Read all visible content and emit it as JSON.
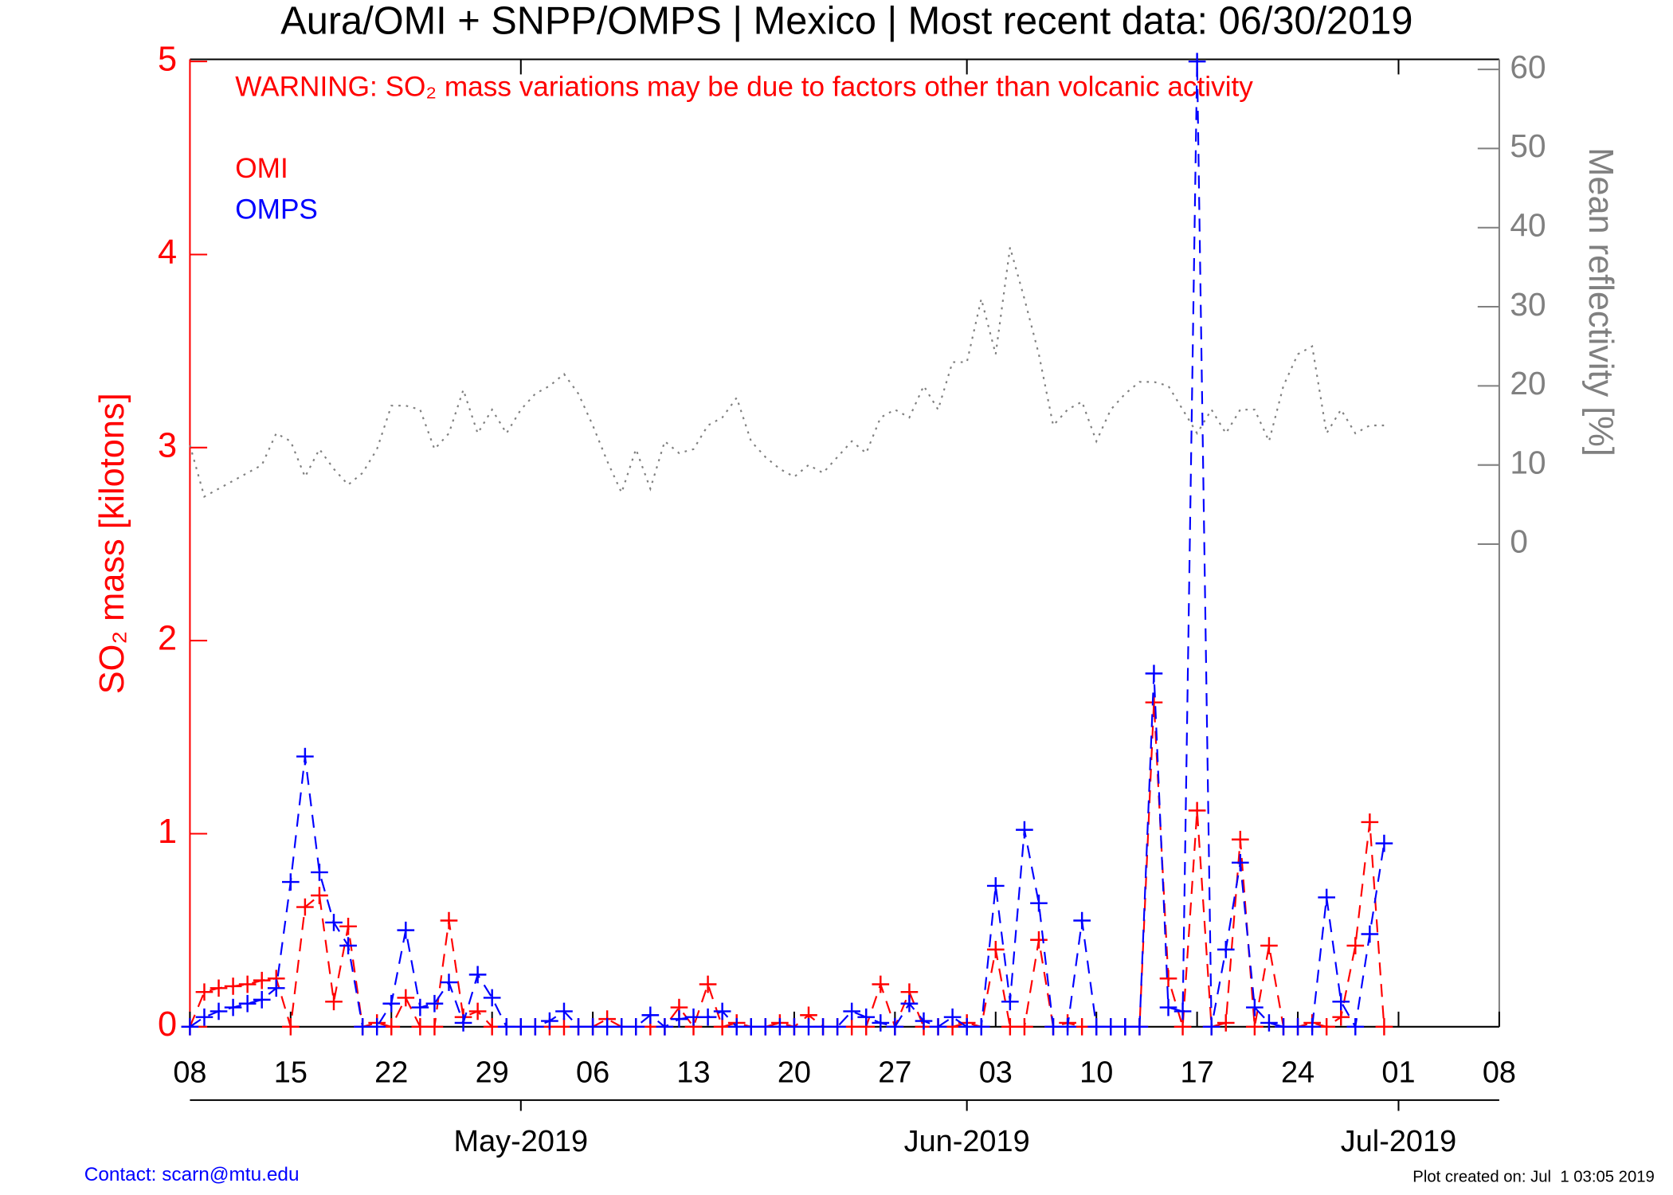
{
  "chart_data": {
    "type": "line",
    "title": "Aura/OMI + SNPP/OMPS | Mexico | Most recent data: 06/30/2019",
    "annotation": "WARNING: SO₂ mass variations may be due to factors other than volcanic activity",
    "ylabel": "SO₂ mass [kilotons]",
    "y2label": "Mean reflectivity [%]",
    "contact": "Contact: scarn@mtu.edu",
    "created": "Plot created on: Jul  1 03:05 2019",
    "x": [
      "2019-04-08",
      "2019-04-09",
      "2019-04-10",
      "2019-04-11",
      "2019-04-12",
      "2019-04-13",
      "2019-04-14",
      "2019-04-15",
      "2019-04-16",
      "2019-04-17",
      "2019-04-18",
      "2019-04-19",
      "2019-04-20",
      "2019-04-21",
      "2019-04-22",
      "2019-04-23",
      "2019-04-24",
      "2019-04-25",
      "2019-04-26",
      "2019-04-27",
      "2019-04-28",
      "2019-04-29",
      "2019-04-30",
      "2019-05-01",
      "2019-05-02",
      "2019-05-03",
      "2019-05-04",
      "2019-05-05",
      "2019-05-06",
      "2019-05-07",
      "2019-05-08",
      "2019-05-09",
      "2019-05-10",
      "2019-05-11",
      "2019-05-12",
      "2019-05-13",
      "2019-05-14",
      "2019-05-15",
      "2019-05-16",
      "2019-05-17",
      "2019-05-18",
      "2019-05-19",
      "2019-05-20",
      "2019-05-21",
      "2019-05-22",
      "2019-05-23",
      "2019-05-24",
      "2019-05-25",
      "2019-05-26",
      "2019-05-27",
      "2019-05-28",
      "2019-05-29",
      "2019-05-30",
      "2019-05-31",
      "2019-06-01",
      "2019-06-02",
      "2019-06-03",
      "2019-06-04",
      "2019-06-05",
      "2019-06-06",
      "2019-06-07",
      "2019-06-08",
      "2019-06-09",
      "2019-06-10",
      "2019-06-11",
      "2019-06-12",
      "2019-06-13",
      "2019-06-14",
      "2019-06-15",
      "2019-06-16",
      "2019-06-17",
      "2019-06-18",
      "2019-06-19",
      "2019-06-20",
      "2019-06-21",
      "2019-06-22",
      "2019-06-23",
      "2019-06-24",
      "2019-06-25",
      "2019-06-26",
      "2019-06-27",
      "2019-06-28",
      "2019-06-29",
      "2019-06-30"
    ],
    "series": [
      {
        "name": "OMI",
        "color": "#ff0000",
        "line_style": "dashed",
        "marker": true,
        "values": [
          0,
          0.18,
          0.2,
          0.21,
          0.22,
          0.24,
          0.25,
          0,
          0.62,
          0.68,
          0.13,
          0.52,
          0,
          0.02,
          0,
          0.15,
          0,
          0,
          0.55,
          0.05,
          0.08,
          0,
          0,
          0,
          0,
          0,
          0,
          0,
          0,
          0.04,
          0,
          0,
          0,
          0,
          0.1,
          0,
          0.22,
          0,
          0.02,
          0,
          0,
          0.02,
          0,
          0.06,
          0,
          0,
          0,
          0,
          0.22,
          0,
          0.18,
          0,
          0,
          0,
          0.02,
          0,
          0.4,
          0,
          0,
          0.45,
          0,
          0.02,
          0,
          0,
          0,
          0,
          0,
          1.68,
          0.25,
          0,
          1.12,
          0,
          0.02,
          0.97,
          0,
          0.42,
          0,
          0,
          0.02,
          0,
          0.05,
          0.42,
          1.06,
          0
        ]
      },
      {
        "name": "OMPS",
        "color": "#0000ff",
        "line_style": "dashed",
        "marker": true,
        "values": [
          0,
          0.05,
          0.08,
          0.1,
          0.12,
          0.14,
          0.2,
          0.75,
          1.4,
          0.8,
          0.54,
          0.42,
          0,
          0,
          0.12,
          0.5,
          0.1,
          0.12,
          0.23,
          0.02,
          0.27,
          0.15,
          0,
          0,
          0,
          0.03,
          0.08,
          0,
          0,
          0,
          0,
          0,
          0.06,
          0,
          0.04,
          0.05,
          0.05,
          0.08,
          0,
          0,
          0,
          0,
          0,
          0,
          0,
          0,
          0.08,
          0.05,
          0.02,
          0,
          0.12,
          0.03,
          0,
          0.05,
          0,
          0,
          0.73,
          0.13,
          1.02,
          0.64,
          0,
          0,
          0.55,
          0,
          0,
          0,
          0,
          1.83,
          0.1,
          0.08,
          5,
          0,
          0.4,
          0.85,
          0.1,
          0.02,
          0,
          0,
          0,
          0.67,
          0.13,
          0,
          0.48,
          0.95
        ]
      },
      {
        "color": "#808080",
        "line_style": "dotted",
        "marker": false,
        "axis": "y2",
        "values": [
          12.5,
          6,
          7,
          8,
          9,
          10,
          14,
          13,
          8.5,
          12,
          9.5,
          7.5,
          9,
          12,
          17.5,
          17.5,
          17,
          12,
          14,
          19.5,
          14,
          17,
          14,
          17,
          19,
          20,
          21.5,
          19,
          15,
          10.5,
          6.5,
          12,
          7,
          13,
          11.5,
          12,
          15,
          16,
          18.5,
          13,
          11,
          9.5,
          8.5,
          10,
          9,
          11,
          13,
          11.5,
          16,
          17,
          16,
          20,
          17,
          23,
          23,
          31,
          24,
          37.5,
          31,
          24,
          15,
          17,
          18,
          13,
          17,
          19,
          20.5,
          20.5,
          20,
          17,
          14,
          17,
          14,
          17,
          17,
          13,
          20,
          24,
          25,
          14,
          17,
          14,
          15,
          15
        ]
      }
    ],
    "xlim": [
      "2019-04-08",
      "2019-07-08"
    ],
    "xticks": [
      {
        "value": "2019-04-08",
        "label": "08"
      },
      {
        "value": "2019-04-15",
        "label": "15"
      },
      {
        "value": "2019-04-22",
        "label": "22"
      },
      {
        "value": "2019-04-29",
        "label": "29"
      },
      {
        "value": "2019-05-06",
        "label": "06"
      },
      {
        "value": "2019-05-13",
        "label": "13"
      },
      {
        "value": "2019-05-20",
        "label": "20"
      },
      {
        "value": "2019-05-27",
        "label": "27"
      },
      {
        "value": "2019-06-03",
        "label": "03"
      },
      {
        "value": "2019-06-10",
        "label": "10"
      },
      {
        "value": "2019-06-17",
        "label": "17"
      },
      {
        "value": "2019-06-24",
        "label": "24"
      },
      {
        "value": "2019-07-01",
        "label": "01"
      },
      {
        "value": "2019-07-08",
        "label": "08"
      }
    ],
    "month_ticks": [
      {
        "value": "2019-05-01",
        "label": "May-2019"
      },
      {
        "value": "2019-06-01",
        "label": "Jun-2019"
      },
      {
        "value": "2019-07-01",
        "label": "Jul-2019"
      }
    ],
    "ylim": [
      0,
      5
    ],
    "yticks": [
      0,
      1,
      2,
      3,
      4,
      5
    ],
    "y2lim": [
      -61,
      61
    ],
    "y2ticks": [
      0,
      10,
      20,
      30,
      40,
      50,
      60
    ]
  }
}
